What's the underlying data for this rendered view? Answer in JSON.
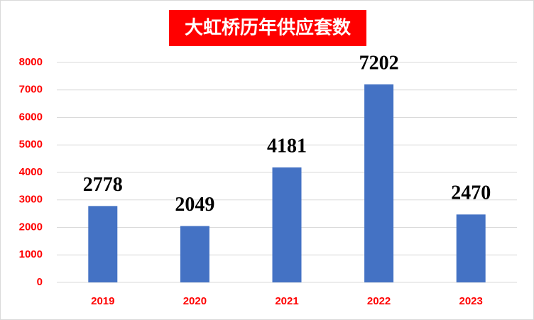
{
  "chart_data": {
    "type": "bar",
    "title": "大虹桥历年供应套数",
    "categories": [
      "2019",
      "2020",
      "2021",
      "2022",
      "2023"
    ],
    "values": [
      2778,
      2049,
      4181,
      7202,
      2470
    ],
    "color": "#4472c4",
    "ylim": [
      0,
      8000
    ],
    "yticks": [
      0,
      1000,
      2000,
      3000,
      4000,
      5000,
      6000,
      7000,
      8000
    ],
    "grid": true
  }
}
